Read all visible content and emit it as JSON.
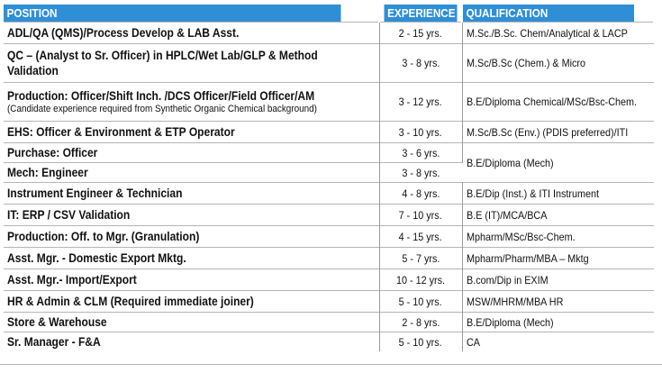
{
  "header": {
    "position": "POSITION",
    "experience": "EXPERIENCE",
    "qualification": "QUALIFICATION"
  },
  "rows": [
    {
      "position": "ADL/QA (QMS)/Process Develop & LAB Asst.",
      "experience": "2 - 15 yrs.",
      "qualification": "M.Sc./B.Sc. Chem/Analytical & LACP"
    },
    {
      "position": "QC – (Analyst to Sr. Officer) in HPLC/Wet Lab/GLP & Method Validation",
      "experience": "3 - 8 yrs.",
      "qualification": "M.Sc/B.Sc (Chem.) & Micro"
    },
    {
      "position": "Production: Officer/Shift Inch. /DCS Officer/Field Officer/AM",
      "note": "(Candidate experience required from Synthetic Organic Chemical background)",
      "experience": "3 - 12 yrs.",
      "qualification": "B.E/Diploma Chemical/MSc/Bsc-Chem."
    },
    {
      "position": "EHS: Officer & Environment & ETP Operator",
      "experience": "3 - 10 yrs.",
      "qualification": "M.Sc/B.Sc (Env.) (PDIS preferred)/ITI"
    },
    {
      "position": "Purchase: Officer",
      "experience": "3 - 6 yrs.",
      "qualification": "B.E/Diploma (Mech)"
    },
    {
      "position": "Mech: Engineer",
      "experience": "3 - 8 yrs."
    },
    {
      "position": "Instrument Engineer & Technician",
      "experience": "4 - 8 yrs.",
      "qualification": "B.E/Dip (Inst.) & ITI Instrument"
    },
    {
      "position": "IT: ERP / CSV Validation",
      "experience": "7 - 10 yrs.",
      "qualification": "B.E (IT)/MCA/BCA"
    },
    {
      "position": "Production: Off. to Mgr. (Granulation)",
      "experience": "4 - 15 yrs.",
      "qualification": "Mpharm/MSc/Bsc-Chem."
    },
    {
      "position": "Asst. Mgr. - Domestic Export Mktg.",
      "experience": "5 - 7 yrs.",
      "qualification": "Mpharm/Pharm/MBA – Mktg"
    },
    {
      "position": "Asst. Mgr.- Import/Export",
      "experience": "10 - 12 yrs.",
      "qualification": "B.com/Dip in EXIM"
    },
    {
      "position": "HR & Admin & CLM (Required immediate joiner)",
      "experience": "5 - 10 yrs.",
      "qualification": "MSW/MHRM/MBA HR"
    },
    {
      "position": "Store & Warehouse",
      "experience": "2 - 8 yrs.",
      "qualification": "B.E/Diploma (Mech)"
    },
    {
      "position": "Sr. Manager - F&A",
      "experience": "5 - 10 yrs.",
      "qualification": "CA"
    }
  ]
}
